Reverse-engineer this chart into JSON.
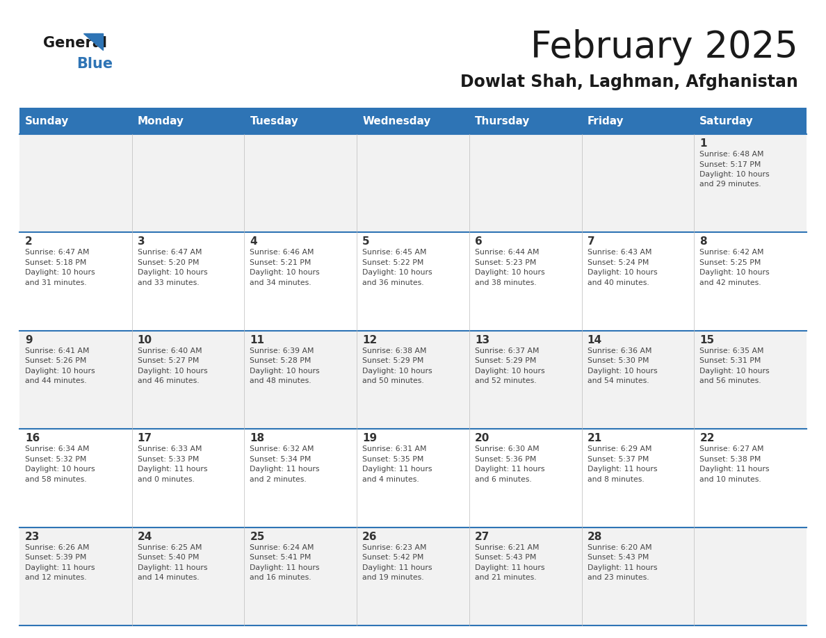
{
  "title": "February 2025",
  "subtitle": "Dowlat Shah, Laghman, Afghanistan",
  "days_of_week": [
    "Sunday",
    "Monday",
    "Tuesday",
    "Wednesday",
    "Thursday",
    "Friday",
    "Saturday"
  ],
  "header_bg": "#2E74B5",
  "header_text": "#FFFFFF",
  "cell_bg_odd": "#F2F2F2",
  "cell_bg_even": "#FFFFFF",
  "separator_color": "#2E74B5",
  "text_color": "#333333",
  "calendar_data": [
    [
      null,
      null,
      null,
      null,
      null,
      null,
      {
        "day": 1,
        "sunrise": "6:48 AM",
        "sunset": "5:17 PM",
        "daylight": "10 hours and 29 minutes."
      }
    ],
    [
      {
        "day": 2,
        "sunrise": "6:47 AM",
        "sunset": "5:18 PM",
        "daylight": "10 hours and 31 minutes."
      },
      {
        "day": 3,
        "sunrise": "6:47 AM",
        "sunset": "5:20 PM",
        "daylight": "10 hours and 33 minutes."
      },
      {
        "day": 4,
        "sunrise": "6:46 AM",
        "sunset": "5:21 PM",
        "daylight": "10 hours and 34 minutes."
      },
      {
        "day": 5,
        "sunrise": "6:45 AM",
        "sunset": "5:22 PM",
        "daylight": "10 hours and 36 minutes."
      },
      {
        "day": 6,
        "sunrise": "6:44 AM",
        "sunset": "5:23 PM",
        "daylight": "10 hours and 38 minutes."
      },
      {
        "day": 7,
        "sunrise": "6:43 AM",
        "sunset": "5:24 PM",
        "daylight": "10 hours and 40 minutes."
      },
      {
        "day": 8,
        "sunrise": "6:42 AM",
        "sunset": "5:25 PM",
        "daylight": "10 hours and 42 minutes."
      }
    ],
    [
      {
        "day": 9,
        "sunrise": "6:41 AM",
        "sunset": "5:26 PM",
        "daylight": "10 hours and 44 minutes."
      },
      {
        "day": 10,
        "sunrise": "6:40 AM",
        "sunset": "5:27 PM",
        "daylight": "10 hours and 46 minutes."
      },
      {
        "day": 11,
        "sunrise": "6:39 AM",
        "sunset": "5:28 PM",
        "daylight": "10 hours and 48 minutes."
      },
      {
        "day": 12,
        "sunrise": "6:38 AM",
        "sunset": "5:29 PM",
        "daylight": "10 hours and 50 minutes."
      },
      {
        "day": 13,
        "sunrise": "6:37 AM",
        "sunset": "5:29 PM",
        "daylight": "10 hours and 52 minutes."
      },
      {
        "day": 14,
        "sunrise": "6:36 AM",
        "sunset": "5:30 PM",
        "daylight": "10 hours and 54 minutes."
      },
      {
        "day": 15,
        "sunrise": "6:35 AM",
        "sunset": "5:31 PM",
        "daylight": "10 hours and 56 minutes."
      }
    ],
    [
      {
        "day": 16,
        "sunrise": "6:34 AM",
        "sunset": "5:32 PM",
        "daylight": "10 hours and 58 minutes."
      },
      {
        "day": 17,
        "sunrise": "6:33 AM",
        "sunset": "5:33 PM",
        "daylight": "11 hours and 0 minutes."
      },
      {
        "day": 18,
        "sunrise": "6:32 AM",
        "sunset": "5:34 PM",
        "daylight": "11 hours and 2 minutes."
      },
      {
        "day": 19,
        "sunrise": "6:31 AM",
        "sunset": "5:35 PM",
        "daylight": "11 hours and 4 minutes."
      },
      {
        "day": 20,
        "sunrise": "6:30 AM",
        "sunset": "5:36 PM",
        "daylight": "11 hours and 6 minutes."
      },
      {
        "day": 21,
        "sunrise": "6:29 AM",
        "sunset": "5:37 PM",
        "daylight": "11 hours and 8 minutes."
      },
      {
        "day": 22,
        "sunrise": "6:27 AM",
        "sunset": "5:38 PM",
        "daylight": "11 hours and 10 minutes."
      }
    ],
    [
      {
        "day": 23,
        "sunrise": "6:26 AM",
        "sunset": "5:39 PM",
        "daylight": "11 hours and 12 minutes."
      },
      {
        "day": 24,
        "sunrise": "6:25 AM",
        "sunset": "5:40 PM",
        "daylight": "11 hours and 14 minutes."
      },
      {
        "day": 25,
        "sunrise": "6:24 AM",
        "sunset": "5:41 PM",
        "daylight": "11 hours and 16 minutes."
      },
      {
        "day": 26,
        "sunrise": "6:23 AM",
        "sunset": "5:42 PM",
        "daylight": "11 hours and 19 minutes."
      },
      {
        "day": 27,
        "sunrise": "6:21 AM",
        "sunset": "5:43 PM",
        "daylight": "11 hours and 21 minutes."
      },
      {
        "day": 28,
        "sunrise": "6:20 AM",
        "sunset": "5:43 PM",
        "daylight": "11 hours and 23 minutes."
      },
      null
    ]
  ]
}
